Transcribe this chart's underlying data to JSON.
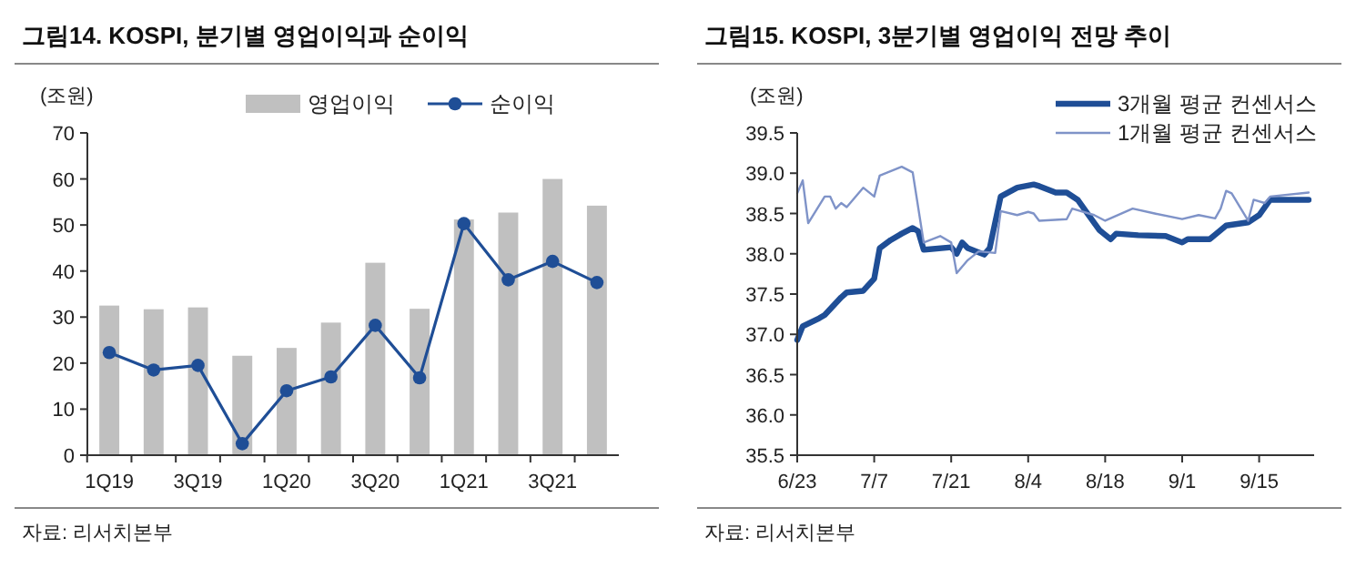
{
  "chart_data": [
    {
      "type": "bar",
      "title": "그림14. KOSPI, 분기별 영업이익과 순이익",
      "ylabel": "(조원)",
      "categories": [
        "1Q19",
        null,
        "3Q19",
        null,
        "1Q20",
        null,
        "3Q20",
        null,
        "1Q21",
        null,
        "3Q21",
        null
      ],
      "series": [
        {
          "name": "영업이익",
          "color": "#c0c0c0",
          "values": [
            32.5,
            31.7,
            32.1,
            21.6,
            23.3,
            28.8,
            41.8,
            31.8,
            51.2,
            52.7,
            60.0,
            54.2
          ]
        },
        {
          "name": "순이익",
          "type": "line",
          "color": "#1f4e96",
          "values": [
            22.3,
            18.5,
            19.5,
            2.5,
            14.0,
            17.0,
            28.2,
            16.8,
            50.3,
            38.1,
            42.1,
            37.5
          ]
        }
      ],
      "ylim": [
        0,
        70
      ],
      "yticks": [
        0,
        10,
        20,
        30,
        40,
        50,
        60,
        70
      ],
      "legend": "top",
      "marker": "circle",
      "annotations": [
        "자료: 리서치본부"
      ]
    },
    {
      "type": "line",
      "title": "그림15. KOSPI, 3분기별 영업이익 전망 추이",
      "ylabel": "(조원)",
      "series": [
        {
          "name": "3개월 평균 컨센서스",
          "color": "#1f4e96",
          "x": [
            "--06-23",
            "--06-24",
            "--06-27",
            "--06-28",
            "--07-01",
            "--07-02",
            "--07-05",
            "--07-07",
            "--07-08",
            "--07-10",
            "--07-12",
            "--07-14",
            "--07-15",
            "--07-16",
            "--07-21",
            "--07-22",
            "--07-23",
            "--07-24",
            "--07-27",
            "--07-28",
            "--07-30",
            "--08-02",
            "--08-05",
            "--08-06",
            "--08-09",
            "--08-11",
            "--08-13",
            "--08-15",
            "--08-17",
            "--08-19",
            "--08-20",
            "--08-24",
            "--08-29",
            "--09-01",
            "--09-02",
            "--09-06",
            "--09-09",
            "--09-13",
            "--09-15",
            "--09-17",
            "--09-24"
          ],
          "values": [
            36.93,
            37.1,
            37.2,
            37.24,
            37.46,
            37.52,
            37.54,
            37.69,
            38.07,
            38.17,
            38.25,
            38.32,
            38.28,
            38.05,
            38.08,
            38.0,
            38.14,
            38.07,
            37.99,
            38.07,
            38.71,
            38.82,
            38.86,
            38.84,
            38.76,
            38.76,
            38.67,
            38.48,
            38.29,
            38.18,
            38.25,
            38.23,
            38.22,
            38.14,
            38.18,
            38.18,
            38.35,
            38.39,
            38.48,
            38.67,
            38.67
          ]
        },
        {
          "name": "1개월 평균 컨센서스",
          "color": "#7f93c8",
          "x": [
            "--06-23",
            "--06-24",
            "--06-25",
            "--06-28",
            "--06-29",
            "--06-30",
            "--07-01",
            "--07-02",
            "--07-05",
            "--07-07",
            "--07-08",
            "--07-12",
            "--07-14",
            "--07-16",
            "--07-19",
            "--07-21",
            "--07-22",
            "--07-24",
            "--07-26",
            "--07-29",
            "--07-30",
            "--08-02",
            "--08-04",
            "--08-05",
            "--08-06",
            "--08-11",
            "--08-12",
            "--08-16",
            "--08-18",
            "--08-23",
            "--08-27",
            "--09-01",
            "--09-04",
            "--09-07",
            "--09-08",
            "--09-09",
            "--09-10",
            "--09-13",
            "--09-14",
            "--09-16",
            "--09-17",
            "--09-24"
          ],
          "values": [
            38.75,
            38.91,
            38.38,
            38.71,
            38.71,
            38.56,
            38.63,
            38.58,
            38.82,
            38.71,
            38.97,
            39.08,
            39.01,
            38.14,
            38.22,
            38.14,
            37.76,
            37.92,
            38.03,
            38.01,
            38.53,
            38.48,
            38.52,
            38.5,
            38.41,
            38.43,
            38.56,
            38.48,
            38.41,
            38.56,
            38.5,
            38.43,
            38.48,
            38.44,
            38.56,
            38.78,
            38.75,
            38.41,
            38.67,
            38.63,
            38.71,
            38.76
          ]
        }
      ],
      "xlim": [
        "--06-23",
        "--09-25"
      ],
      "xticks": [
        {
          "value": "--06-23",
          "label": "6/23"
        },
        {
          "value": "--07-07",
          "label": "7/7"
        },
        {
          "value": "--07-21",
          "label": "7/21"
        },
        {
          "value": "--08-04",
          "label": "8/4"
        },
        {
          "value": "--08-18",
          "label": "8/18"
        },
        {
          "value": "--09-01",
          "label": "9/1"
        },
        {
          "value": "--09-15",
          "label": "9/15"
        }
      ],
      "ylim": [
        35.5,
        39.5
      ],
      "yticks": [
        35.5,
        {
          "value": 36,
          "label": "36.0"
        },
        36.5,
        {
          "value": 37,
          "label": "37.0"
        },
        37.5,
        {
          "value": 38,
          "label": "38.0"
        },
        38.5,
        {
          "value": 39,
          "label": "39.0"
        },
        39.5
      ],
      "legend": "top right",
      "annotations": [
        "자료: 리서치본부"
      ]
    }
  ]
}
